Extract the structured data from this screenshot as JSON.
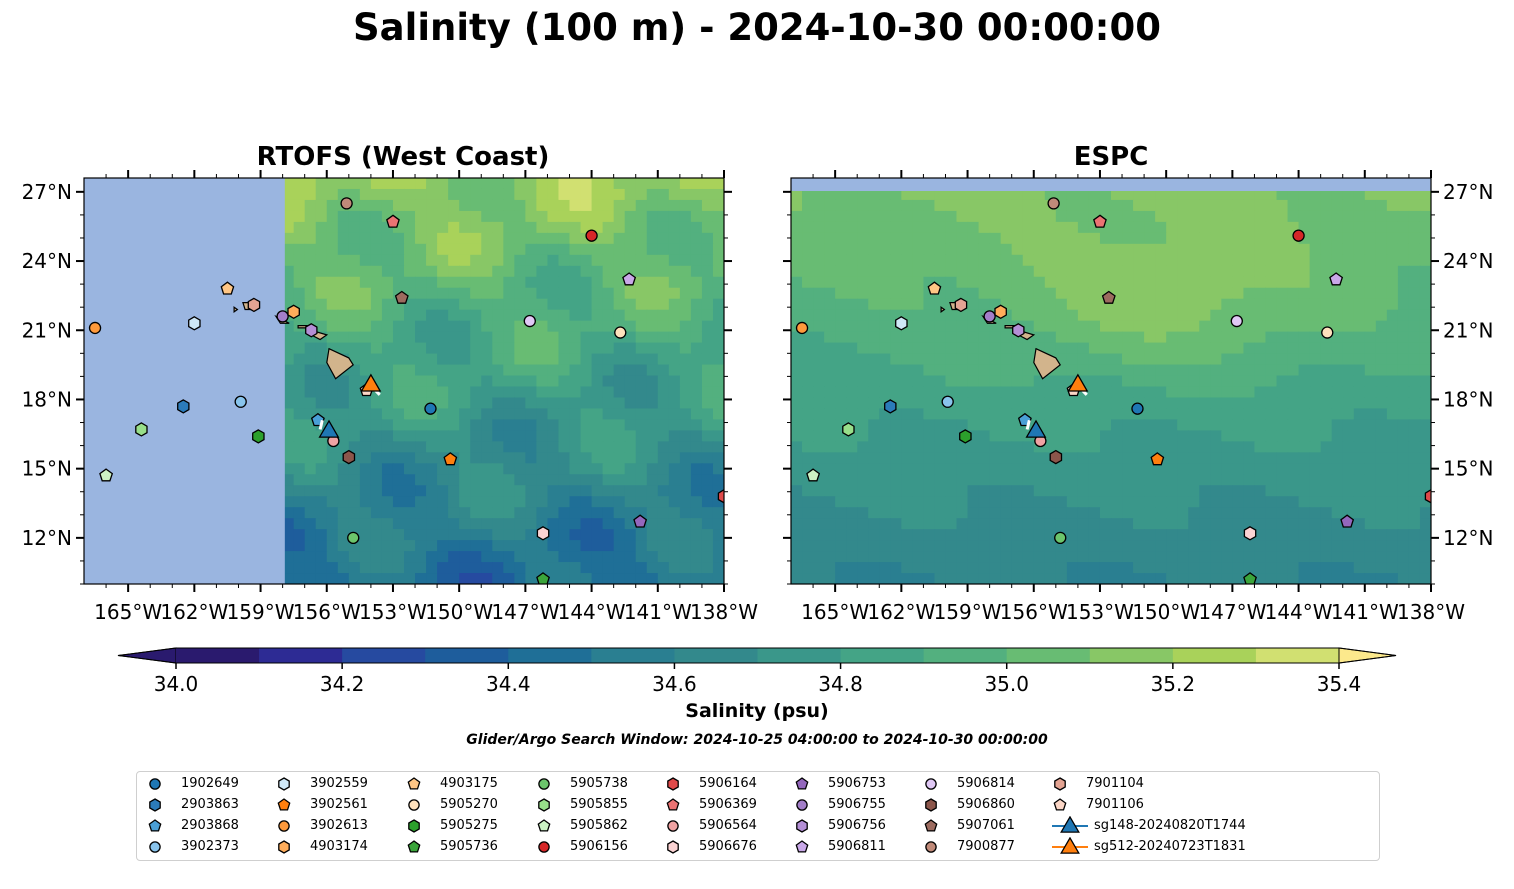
{
  "title": "Salinity (100 m) - 2024-10-30 00:00:00",
  "panels": [
    {
      "title": "RTOFS (West Coast)"
    },
    {
      "title": "ESPC"
    }
  ],
  "lon_ticks": [
    "165°W",
    "162°W",
    "159°W",
    "156°W",
    "153°W",
    "150°W",
    "147°W",
    "144°W",
    "141°W",
    "138°W"
  ],
  "lat_ticks": [
    "27°N",
    "24°N",
    "21°N",
    "18°N",
    "15°N",
    "12°N"
  ],
  "colorbar": {
    "label": "Salinity (psu)",
    "min": 34.0,
    "max": 35.4,
    "step": 0.1,
    "tick_labels": [
      "34.0",
      "34.2",
      "34.4",
      "34.6",
      "34.8",
      "35.0",
      "35.2",
      "35.4"
    ],
    "colors": [
      "#2a1a6e",
      "#2d2b94",
      "#264aa0",
      "#1e5d9c",
      "#1f6f97",
      "#2a7f91",
      "#33898c",
      "#3a978a",
      "#44a486",
      "#53b07f",
      "#68bc73",
      "#88c766",
      "#a9d25a",
      "#d1e071",
      "#fce98c"
    ],
    "under_color": "#2a1a6e",
    "over_color": "#fce98c"
  },
  "note": "Glider/Argo Search Window: 2024-10-25 04:00:00 to 2024-10-30 00:00:00",
  "chart_data": {
    "type": "scatter",
    "lon_range": [
      -167.0,
      -138.0
    ],
    "lat_range": [
      10.0,
      27.6
    ],
    "rtofs_domain_west_lon": -157.9,
    "land_color": "#d2b48c",
    "nodata_color": "#9ab5e0",
    "floats": [
      {
        "id": "1902649",
        "shape": "circle",
        "color": "#1f77b4",
        "lon": -151.3,
        "lat": 17.6
      },
      {
        "id": "2903863",
        "shape": "hexagon",
        "color": "#2b7bba",
        "lon": -162.5,
        "lat": 17.7
      },
      {
        "id": "2903868",
        "shape": "pentagon",
        "color": "#4a9fd6",
        "lon": -156.4,
        "lat": 17.1
      },
      {
        "id": "3902373",
        "shape": "circle",
        "color": "#89c4ec",
        "lon": -159.9,
        "lat": 17.9
      },
      {
        "id": "3902559",
        "shape": "hexagon",
        "color": "#cfe8f7",
        "lon": -162.0,
        "lat": 21.3
      },
      {
        "id": "3902561",
        "shape": "pentagon",
        "color": "#ff7f0e",
        "lon": -150.4,
        "lat": 15.4
      },
      {
        "id": "3902613",
        "shape": "circle",
        "color": "#ff9a3c",
        "lon": -166.5,
        "lat": 21.1
      },
      {
        "id": "4903174",
        "shape": "hexagon",
        "color": "#ffad5b",
        "lon": -157.5,
        "lat": 21.8
      },
      {
        "id": "4903175",
        "shape": "pentagon",
        "color": "#ffc685",
        "lon": -160.5,
        "lat": 22.8
      },
      {
        "id": "5905270",
        "shape": "circle",
        "color": "#ffe1bd",
        "lon": -142.7,
        "lat": 20.9
      },
      {
        "id": "5905275",
        "shape": "hexagon",
        "color": "#2ca02c",
        "lon": -159.1,
        "lat": 16.4
      },
      {
        "id": "5905736",
        "shape": "pentagon",
        "color": "#3ba53b",
        "lon": -146.2,
        "lat": 10.2
      },
      {
        "id": "5905738",
        "shape": "circle",
        "color": "#6cc56c",
        "lon": -154.8,
        "lat": 12.0
      },
      {
        "id": "5905855",
        "shape": "hexagon",
        "color": "#98df8a",
        "lon": -164.4,
        "lat": 16.7
      },
      {
        "id": "5905862",
        "shape": "pentagon",
        "color": "#ccf2c4",
        "lon": -166.0,
        "lat": 14.7
      },
      {
        "id": "5906156",
        "shape": "circle",
        "color": "#d62728",
        "lon": -144.0,
        "lat": 25.1
      },
      {
        "id": "5906164",
        "shape": "hexagon",
        "color": "#e04a4a",
        "lon": -138.0,
        "lat": 13.8
      },
      {
        "id": "5906369",
        "shape": "pentagon",
        "color": "#eb7373",
        "lon": -153.0,
        "lat": 25.7
      },
      {
        "id": "5906564",
        "shape": "circle",
        "color": "#f0a3a3",
        "lon": -155.7,
        "lat": 16.2
      },
      {
        "id": "5906676",
        "shape": "hexagon",
        "color": "#fbd3d3",
        "lon": -146.2,
        "lat": 12.2
      },
      {
        "id": "5906753",
        "shape": "pentagon",
        "color": "#9467bd",
        "lon": -141.8,
        "lat": 12.7
      },
      {
        "id": "5906755",
        "shape": "circle",
        "color": "#a37ec9",
        "lon": -158.0,
        "lat": 21.6
      },
      {
        "id": "5906756",
        "shape": "hexagon",
        "color": "#b48fd6",
        "lon": -156.7,
        "lat": 21.0
      },
      {
        "id": "5906811",
        "shape": "pentagon",
        "color": "#c9a8e8",
        "lon": -142.3,
        "lat": 23.2
      },
      {
        "id": "5906814",
        "shape": "circle",
        "color": "#e0c8f5",
        "lon": -146.8,
        "lat": 21.4
      },
      {
        "id": "5906860",
        "shape": "hexagon",
        "color": "#8c564b",
        "lon": -155.0,
        "lat": 15.5
      },
      {
        "id": "5907061",
        "shape": "pentagon",
        "color": "#9c6b5f",
        "lon": -152.6,
        "lat": 22.4
      },
      {
        "id": "7900877",
        "shape": "circle",
        "color": "#c08a79",
        "lon": -155.1,
        "lat": 26.5
      },
      {
        "id": "7901104",
        "shape": "hexagon",
        "color": "#e4a493",
        "lon": -159.3,
        "lat": 22.1
      },
      {
        "id": "7901106",
        "shape": "pentagon",
        "color": "#fbd6c6",
        "lon": -154.2,
        "lat": 18.4
      }
    ],
    "gliders": [
      {
        "id": "sg148-20240820T1744",
        "shape": "triangle",
        "color": "#1f77b4",
        "lon": -155.9,
        "lat": 16.6
      },
      {
        "id": "sg512-20240723T1831",
        "shape": "triangle",
        "color": "#ff7f0e",
        "lon": -154.0,
        "lat": 18.6
      }
    ]
  }
}
